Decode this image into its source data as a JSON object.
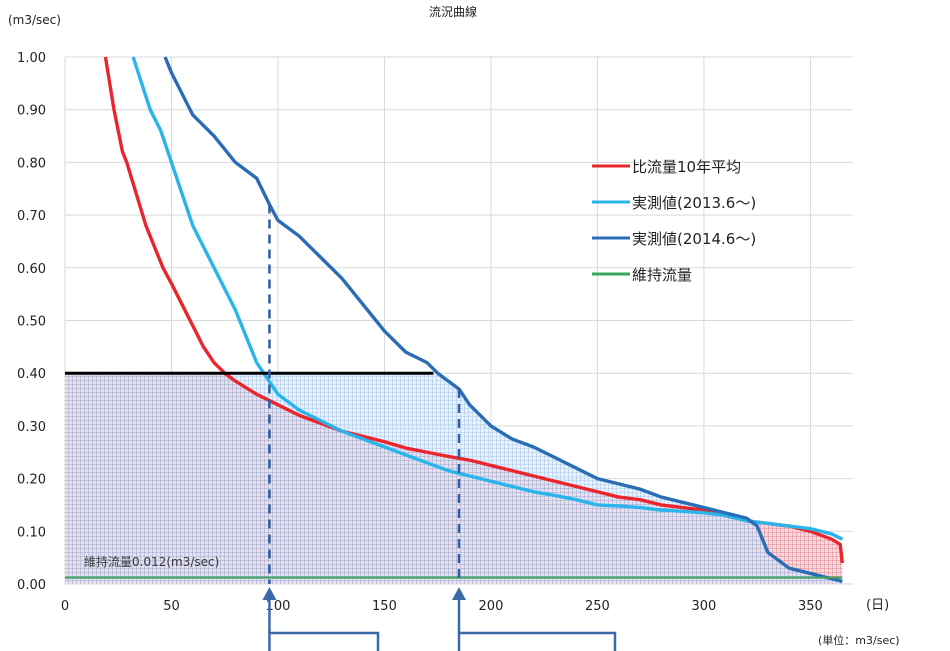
{
  "chart_data": {
    "type": "line",
    "title": "流況曲線",
    "ylabel": "(m3/sec)",
    "xlabel": "(日)",
    "unit_note": "(単位：m3/sec)",
    "xlim": [
      0,
      370
    ],
    "ylim": [
      0,
      1.0
    ],
    "x_ticks": [
      "0",
      "50",
      "100",
      "150",
      "200",
      "250",
      "300",
      "350"
    ],
    "y_ticks": [
      "0.00",
      "0.10",
      "0.20",
      "0.30",
      "0.40",
      "0.50",
      "0.60",
      "0.70",
      "0.80",
      "0.90",
      "1.00"
    ],
    "grid": true,
    "legend_position": "right",
    "maintenance_flow_label": "維持流量0.012(m3/sec)",
    "maintenance_flow_value": 0.012,
    "threshold_value": 0.4,
    "threshold_x_range": [
      0,
      173
    ],
    "marker_days": [
      96,
      185
    ],
    "series": [
      {
        "name": "比流量10年平均",
        "color": "#e8262b",
        "x": [
          19,
          21,
          23,
          25,
          27,
          29,
          32,
          35,
          38,
          42,
          46,
          50,
          55,
          60,
          65,
          70,
          75,
          80,
          90,
          100,
          110,
          120,
          130,
          140,
          150,
          160,
          170,
          180,
          190,
          200,
          210,
          220,
          230,
          240,
          250,
          260,
          270,
          280,
          290,
          300,
          310,
          320,
          330,
          340,
          350,
          360,
          364,
          365
        ],
        "values": [
          1.0,
          0.95,
          0.9,
          0.86,
          0.82,
          0.8,
          0.76,
          0.72,
          0.68,
          0.64,
          0.6,
          0.57,
          0.53,
          0.49,
          0.45,
          0.42,
          0.4,
          0.385,
          0.36,
          0.34,
          0.32,
          0.305,
          0.29,
          0.28,
          0.27,
          0.258,
          0.25,
          0.242,
          0.235,
          0.225,
          0.215,
          0.205,
          0.195,
          0.185,
          0.175,
          0.165,
          0.16,
          0.15,
          0.145,
          0.14,
          0.13,
          0.12,
          0.115,
          0.11,
          0.1,
          0.085,
          0.075,
          0.04
        ]
      },
      {
        "name": "実測値(2013.6～)",
        "color": "#29b5ea",
        "x": [
          32,
          36,
          40,
          45,
          50,
          55,
          60,
          65,
          70,
          75,
          80,
          85,
          90,
          95,
          100,
          110,
          120,
          130,
          140,
          150,
          160,
          170,
          180,
          190,
          200,
          210,
          220,
          230,
          240,
          250,
          260,
          270,
          280,
          290,
          300,
          310,
          320,
          330,
          340,
          350,
          360,
          365
        ],
        "values": [
          1.0,
          0.95,
          0.9,
          0.86,
          0.8,
          0.74,
          0.68,
          0.64,
          0.6,
          0.56,
          0.52,
          0.47,
          0.42,
          0.39,
          0.36,
          0.33,
          0.31,
          0.29,
          0.275,
          0.26,
          0.245,
          0.23,
          0.215,
          0.205,
          0.195,
          0.185,
          0.175,
          0.168,
          0.16,
          0.15,
          0.148,
          0.145,
          0.14,
          0.138,
          0.135,
          0.13,
          0.12,
          0.115,
          0.11,
          0.105,
          0.095,
          0.085
        ]
      },
      {
        "name": "実測値(2014.6～)",
        "color": "#2a6db5",
        "x": [
          47,
          50,
          55,
          60,
          70,
          80,
          90,
          96,
          100,
          110,
          120,
          130,
          140,
          150,
          160,
          170,
          175,
          180,
          185,
          190,
          200,
          210,
          220,
          230,
          240,
          250,
          260,
          270,
          280,
          290,
          300,
          310,
          320,
          325,
          330,
          340,
          350,
          360,
          365
        ],
        "values": [
          1.0,
          0.97,
          0.93,
          0.89,
          0.85,
          0.8,
          0.77,
          0.72,
          0.69,
          0.66,
          0.62,
          0.58,
          0.53,
          0.48,
          0.44,
          0.42,
          0.4,
          0.385,
          0.37,
          0.34,
          0.3,
          0.275,
          0.26,
          0.24,
          0.22,
          0.2,
          0.19,
          0.18,
          0.165,
          0.155,
          0.145,
          0.135,
          0.125,
          0.11,
          0.06,
          0.03,
          0.02,
          0.01,
          0.005
        ]
      },
      {
        "name": "維持流量",
        "color": "#3aa65a",
        "x": [
          0,
          365
        ],
        "values": [
          0.012,
          0.012
        ]
      }
    ]
  }
}
